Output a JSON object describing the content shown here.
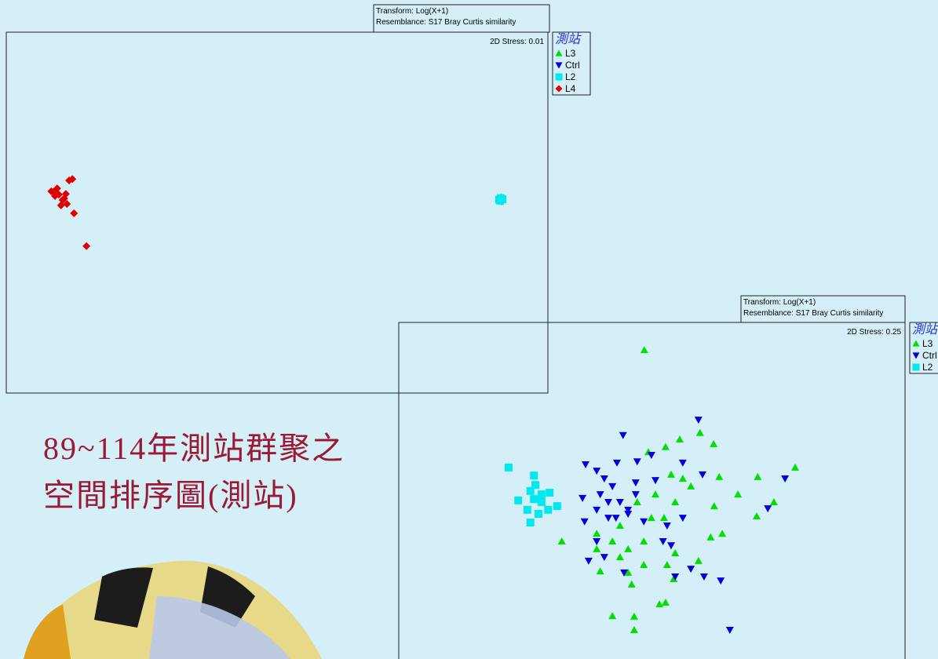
{
  "slide": {
    "title_lines": [
      "89~114年測站群聚之",
      "空間排序圖(測站)"
    ]
  },
  "chart_data": [
    {
      "type": "scatter",
      "transform": "Transform: Log(X+1)",
      "resemblance": "Resemblance: S17 Bray Curtis similarity",
      "stress_label": "2D Stress: 0.01",
      "legend_title": "測站",
      "legend": "outside-right",
      "grid": false,
      "xlim": [
        0,
        100
      ],
      "ylim": [
        0,
        100
      ],
      "series": [
        {
          "name": "L3",
          "color": "#00e000",
          "marker": "triangle-up",
          "x": [
            91.4
          ],
          "y": [
            54.3
          ]
        },
        {
          "name": "Ctrl",
          "color": "#0000dd",
          "marker": "triangle-down",
          "x": [
            91.5
          ],
          "y": [
            53.1
          ]
        },
        {
          "name": "L2",
          "color": "#00e8f0",
          "marker": "square",
          "x": [
            91.0,
            91.3,
            91.6,
            91.2
          ],
          "y": [
            53.6,
            54.0,
            53.7,
            53.3
          ]
        },
        {
          "name": "L4",
          "color": "#e00000",
          "marker": "diamond",
          "x": [
            8.3,
            9.0,
            9.7,
            10.4,
            11.2,
            10.1,
            9.4,
            11.6,
            12.2,
            12.5,
            10.7,
            14.8,
            8.7,
            11.0
          ],
          "y": [
            55.9,
            54.6,
            55.0,
            53.5,
            52.4,
            52.0,
            56.7,
            58.9,
            59.3,
            49.8,
            53.9,
            40.7,
            55.7,
            55.2
          ]
        }
      ]
    },
    {
      "type": "scatter",
      "transform": "Transform: Log(X+1)",
      "resemblance": "Resemblance: S17 Bray Curtis similarity",
      "stress_label": "2D Stress: 0.25",
      "legend_title": "測站",
      "legend": "outside-right",
      "grid": false,
      "xlim": [
        0,
        100
      ],
      "ylim": [
        0,
        100
      ],
      "series": [
        {
          "name": "L3",
          "color": "#00e000",
          "marker": "triangle-up",
          "x": [
            48.5,
            52.7,
            55.5,
            59.5,
            62.2,
            49.3,
            78.3,
            70.9,
            67.0,
            74.1,
            70.7,
            63.3,
            57.7,
            54.6,
            52.4,
            50.7,
            47.1,
            48.4,
            45.3,
            43.7,
            42.2,
            32.2,
            39.1,
            45.3,
            48.4,
            53.0,
            54.6,
            59.2,
            39.8,
            46.0,
            54.3,
            51.5,
            52.7,
            42.2,
            46.5,
            46.5,
            63.9,
            61.6,
            62.3,
            49.9,
            39.1,
            43.7,
            56.1,
            53.8
          ],
          "y": [
            91.8,
            62.9,
            65.2,
            67.1,
            63.8,
            61.4,
            56.8,
            54.0,
            48.8,
            46.5,
            42.3,
            54.0,
            51.2,
            46.5,
            41.8,
            48.8,
            46.5,
            34.8,
            32.5,
            30.1,
            34.8,
            34.8,
            32.5,
            25.5,
            27.8,
            27.8,
            31.3,
            29.0,
            25.9,
            22.0,
            23.6,
            16.1,
            16.6,
            12.6,
            12.4,
            8.4,
            37.1,
            36.0,
            45.3,
            41.8,
            37.1,
            39.5,
            53.5,
            54.7
          ]
        },
        {
          "name": "Ctrl",
          "color": "#0000dd",
          "marker": "triangle-down",
          "x": [
            59.2,
            44.3,
            36.9,
            39.1,
            43.1,
            47.1,
            49.9,
            56.1,
            60.0,
            76.3,
            72.9,
            40.6,
            42.2,
            39.8,
            43.7,
            45.3,
            46.8,
            41.4,
            36.7,
            39.1,
            40.6,
            37.5,
            45.3,
            48.4,
            53.0,
            56.1,
            53.8,
            52.2,
            57.7,
            60.3,
            63.6,
            54.6,
            44.5,
            41.4,
            42.9,
            65.4,
            36.3,
            39.1,
            46.8,
            50.7
          ],
          "y": [
            71.0,
            66.4,
            57.7,
            55.8,
            58.2,
            58.6,
            60.5,
            58.2,
            54.7,
            53.5,
            44.6,
            53.5,
            51.2,
            48.8,
            46.5,
            44.2,
            48.8,
            41.8,
            40.7,
            34.8,
            30.1,
            29.0,
            43.0,
            40.7,
            39.5,
            41.8,
            33.6,
            34.8,
            26.6,
            24.3,
            23.1,
            24.3,
            25.5,
            46.5,
            41.8,
            8.4,
            47.7,
            44.2,
            52.3,
            53.0
          ]
        },
        {
          "name": "L2",
          "color": "#00e8f0",
          "marker": "square",
          "x": [
            21.7,
            26.7,
            27.0,
            26.0,
            28.2,
            29.8,
            31.3,
            23.6,
            25.4,
            27.6,
            26.0,
            28.2,
            29.5,
            26.7
          ],
          "y": [
            56.8,
            54.4,
            51.6,
            49.8,
            48.8,
            49.3,
            45.3,
            47.0,
            44.2,
            43.0,
            40.4,
            46.5,
            44.2,
            47.4
          ]
        }
      ]
    }
  ]
}
